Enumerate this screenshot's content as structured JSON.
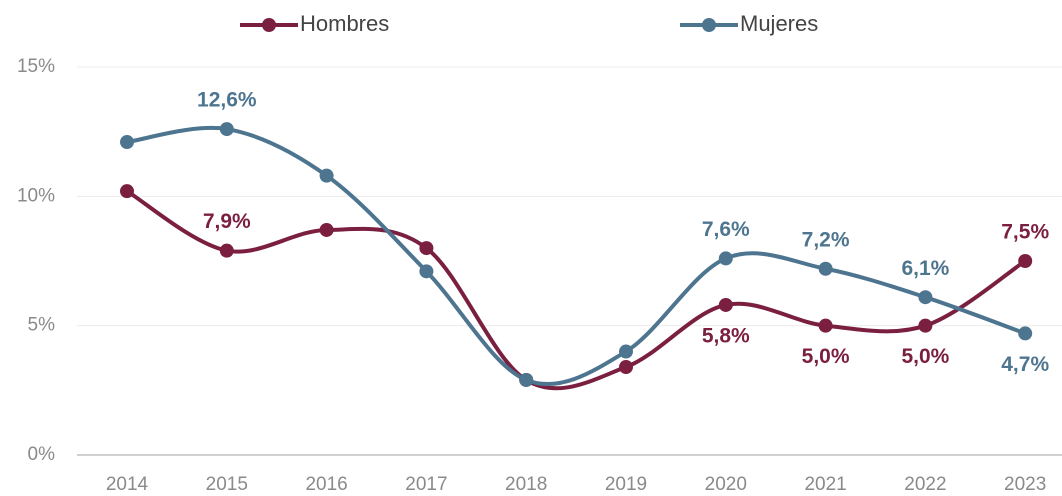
{
  "chart_data": {
    "type": "line",
    "categories": [
      "2014",
      "2015",
      "2016",
      "2017",
      "2018",
      "2019",
      "2020",
      "2021",
      "2022",
      "2023"
    ],
    "series": [
      {
        "name": "Hombres",
        "color": "#7b1f40",
        "values": [
          10.2,
          7.9,
          8.7,
          8.0,
          2.9,
          3.4,
          5.8,
          5.0,
          5.0,
          7.5
        ],
        "value_labels": [
          null,
          "7,9%",
          null,
          null,
          null,
          null,
          "5,8%",
          "5,0%",
          "5,0%",
          "7,5%"
        ]
      },
      {
        "name": "Mujeres",
        "color": "#4e7590",
        "values": [
          12.1,
          12.6,
          10.8,
          7.1,
          2.9,
          4.0,
          7.6,
          7.2,
          6.1,
          4.7
        ],
        "value_labels": [
          null,
          "12,6%",
          null,
          null,
          null,
          null,
          "7,6%",
          "7,2%",
          "6,1%",
          "4,7%"
        ]
      }
    ],
    "ylim": [
      0,
      15
    ],
    "yticks": [
      {
        "value": 0,
        "label": "0%"
      },
      {
        "value": 5,
        "label": "5%"
      },
      {
        "value": 10,
        "label": "10%"
      },
      {
        "value": 15,
        "label": "15%"
      }
    ],
    "grid": true,
    "legend": "top"
  }
}
